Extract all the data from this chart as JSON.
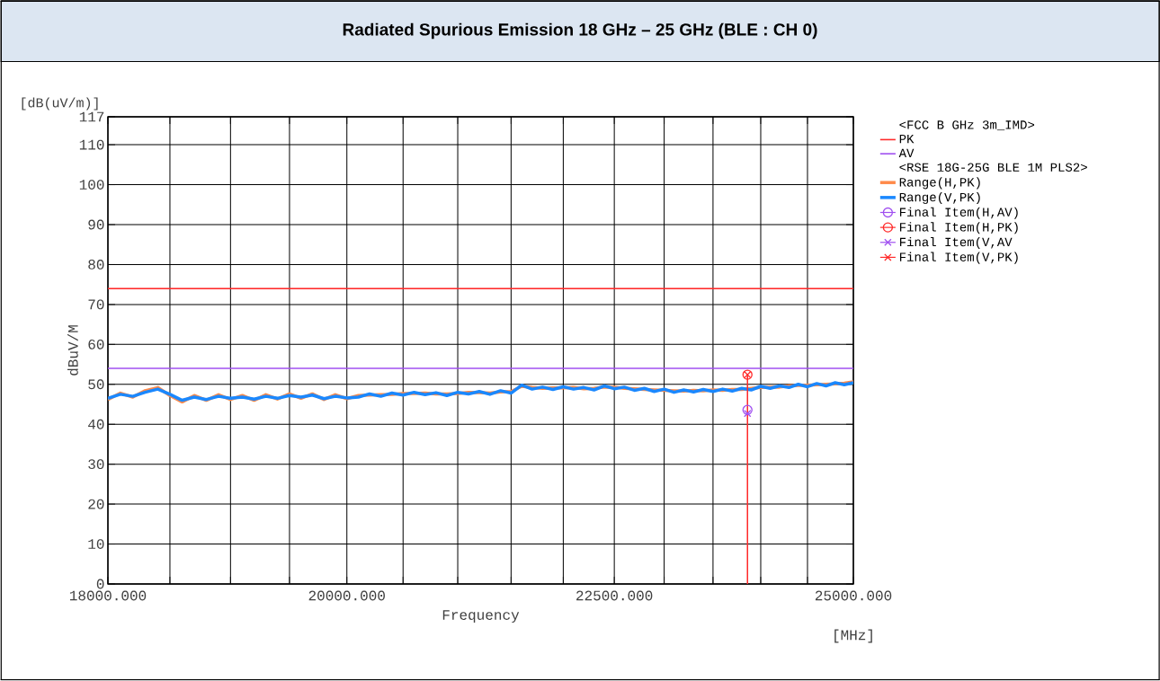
{
  "chart_data": {
    "type": "line",
    "title": "Radiated Spurious Emission 18 GHz – 25 GHz (BLE : CH 0)",
    "xlabel": "Frequency",
    "ylabel": "dBuV/M",
    "legend_title": "<FCC B GHz 3m_IMD>",
    "annotations": [
      "<RSE 18G-25G BLE 1M PLS2>",
      "[dB(uV/m)]",
      "[MHz]"
    ],
    "log": "x",
    "grid": true,
    "legend": "right",
    "xlim": [
      18000,
      25000
    ],
    "ylim": [
      0,
      117
    ],
    "xticks": [
      {
        "value": 18000,
        "label": "18000.000"
      },
      {
        "value": 18500,
        "label": null
      },
      {
        "value": 19000,
        "label": null
      },
      {
        "value": 19500,
        "label": null
      },
      {
        "value": 20000,
        "label": "20000.000"
      },
      {
        "value": 20500,
        "label": null
      },
      {
        "value": 21000,
        "label": null
      },
      {
        "value": 21500,
        "label": null
      },
      {
        "value": 22000,
        "label": null
      },
      {
        "value": 22500,
        "label": "22500.000"
      },
      {
        "value": 23000,
        "label": null
      },
      {
        "value": 23500,
        "label": null
      },
      {
        "value": 24000,
        "label": null
      },
      {
        "value": 24500,
        "label": null
      },
      {
        "value": 25000,
        "label": "25000.000"
      }
    ],
    "yticks": [
      0,
      10,
      20,
      30,
      40,
      50,
      60,
      70,
      80,
      90,
      100,
      110,
      117
    ],
    "series": [
      {
        "name": "PK",
        "color": "#ff2a2a",
        "marker": "none",
        "x": [
          18000,
          25000
        ],
        "values": [
          74,
          74
        ]
      },
      {
        "name": "AV",
        "color": "#a050f0",
        "marker": "none",
        "x": [
          18000,
          25000
        ],
        "values": [
          54,
          54
        ]
      },
      {
        "name": "Range(H,PK)",
        "color": "#ff8a4a",
        "marker": "none",
        "x": [
          18000,
          18100,
          18200,
          18300,
          18400,
          18500,
          18600,
          18700,
          18800,
          18900,
          19000,
          19100,
          19200,
          19300,
          19400,
          19500,
          19600,
          19700,
          19800,
          19900,
          20000,
          20100,
          20200,
          20300,
          20400,
          20500,
          20600,
          20700,
          20800,
          20900,
          21000,
          21100,
          21200,
          21300,
          21400,
          21500,
          21600,
          21700,
          21800,
          21900,
          22000,
          22100,
          22200,
          22300,
          22400,
          22500,
          22600,
          22700,
          22800,
          22900,
          23000,
          23100,
          23200,
          23300,
          23400,
          23500,
          23600,
          23700,
          23800,
          23900,
          24000,
          24100,
          24200,
          24300,
          24400,
          24500,
          24600,
          24700,
          24800,
          24900,
          25000
        ],
        "values": [
          46.2,
          47.8,
          46.8,
          48.4,
          49.2,
          47.2,
          45.6,
          47.2,
          46,
          47.4,
          46.2,
          47.2,
          46,
          47.4,
          46.3,
          47.6,
          46.5,
          47.6,
          46.2,
          47.4,
          46.4,
          47.2,
          47.3,
          47.4,
          47.5,
          47.7,
          47.7,
          47.8,
          47.6,
          47.6,
          47.7,
          48,
          47.9,
          47.8,
          48.1,
          48.2,
          49.5,
          49.2,
          49,
          49.1,
          49.1,
          49.2,
          48.9,
          49,
          49.3,
          49.3,
          49,
          48.9,
          48.7,
          48.6,
          48.5,
          48.4,
          48.3,
          48.5,
          48.4,
          48.6,
          48.5,
          48.7,
          48.7,
          49,
          49.2,
          49.3,
          49.3,
          49.6,
          49.7,
          49.8,
          49.9,
          50,
          50.1,
          50.3,
          50.6
        ]
      },
      {
        "name": "Range(V,PK)",
        "color": "#1a88ff",
        "marker": "none",
        "x": [
          18000,
          18100,
          18200,
          18300,
          18400,
          18500,
          18600,
          18700,
          18800,
          18900,
          19000,
          19100,
          19200,
          19300,
          19400,
          19500,
          19600,
          19700,
          19800,
          19900,
          20000,
          20100,
          20200,
          20300,
          20400,
          20500,
          20600,
          20700,
          20800,
          20900,
          21000,
          21100,
          21200,
          21300,
          21400,
          21500,
          21600,
          21700,
          21800,
          21900,
          22000,
          22100,
          22200,
          22300,
          22400,
          22500,
          22600,
          22700,
          22800,
          22900,
          23000,
          23100,
          23200,
          23300,
          23400,
          23500,
          23600,
          23700,
          23800,
          23900,
          24000,
          24100,
          24200,
          24300,
          24400,
          24500,
          24600,
          24700,
          24800,
          24900,
          25000
        ],
        "values": [
          46.5,
          47.5,
          47,
          48,
          48.8,
          47.5,
          46,
          46.8,
          46.2,
          47,
          46.5,
          46.8,
          46.3,
          47,
          46.5,
          47.2,
          46.8,
          47.3,
          46.4,
          47,
          46.6,
          46.8,
          47.6,
          47,
          47.8,
          47.3,
          48,
          47.4,
          47.9,
          47.2,
          48,
          47.6,
          48.2,
          47.5,
          48.4,
          47.8,
          49.8,
          48.8,
          49.3,
          48.7,
          49.4,
          48.8,
          49.2,
          48.6,
          49.6,
          48.9,
          49.3,
          48.5,
          49,
          48.2,
          48.8,
          48,
          48.6,
          48.1,
          48.7,
          48.2,
          48.8,
          48.3,
          49,
          48.6,
          49.5,
          49,
          49.6,
          49.2,
          50,
          49.4,
          50.2,
          49.6,
          50.4,
          49.9,
          50.4
        ]
      },
      {
        "name": "Final Item(H,AV)",
        "type": "scatter",
        "color": "#a050f0",
        "marker": "circle",
        "x": [
          23860
        ],
        "values": [
          43.6
        ]
      },
      {
        "name": "Final Item(H,PK)",
        "type": "scatter",
        "color": "#ff2a2a",
        "marker": "circle",
        "x": [
          23860
        ],
        "values": [
          52.4
        ]
      },
      {
        "name": "Final Item(V,AV",
        "type": "scatter",
        "color": "#a050f0",
        "marker": "cross",
        "x": [
          23860
        ],
        "values": [
          42.7
        ]
      },
      {
        "name": "Final Item(V,PK)",
        "type": "lollipop",
        "color": "#ff2a2a",
        "marker": "cross",
        "x": [
          23860
        ],
        "values": [
          52.4
        ]
      }
    ]
  }
}
